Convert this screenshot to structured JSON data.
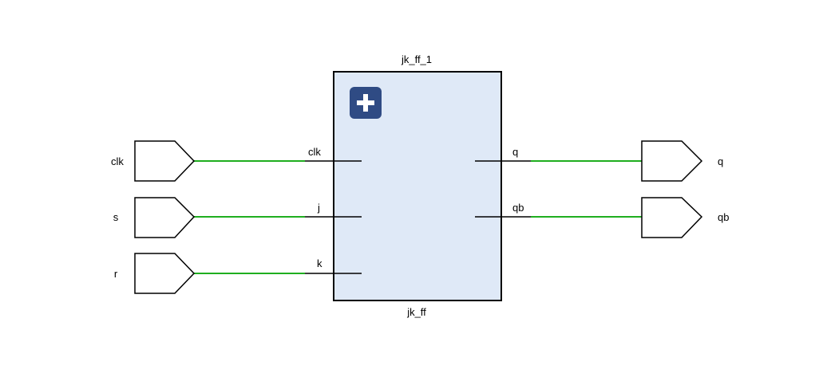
{
  "block": {
    "instance_name": "jk_ff_1",
    "module_name": "jk_ff",
    "expand_icon": "plus-icon",
    "input_pins": [
      "clk",
      "j",
      "k"
    ],
    "output_pins": [
      "q",
      "qb"
    ]
  },
  "input_ports": [
    {
      "label": "clk",
      "connects_to": "clk"
    },
    {
      "label": "s",
      "connects_to": "j"
    },
    {
      "label": "r",
      "connects_to": "k"
    }
  ],
  "output_ports": [
    {
      "label": "q",
      "connects_from": "q"
    },
    {
      "label": "qb",
      "connects_from": "qb"
    }
  ],
  "colors": {
    "block_fill": "#dfe9f7",
    "wire": "#1fae1f",
    "expand_button": "#2f4b84"
  }
}
